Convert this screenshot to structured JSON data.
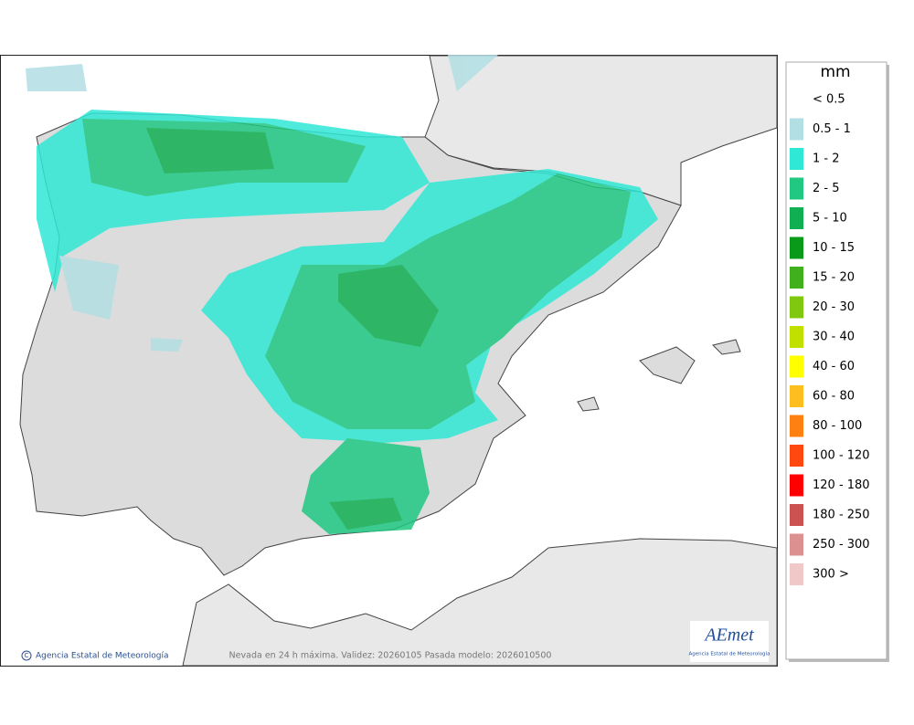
{
  "legend": {
    "title": "mm",
    "items": [
      {
        "label": "< 0.5"
      },
      {
        "label": "0.5 - 1",
        "color": "#b2dfe4"
      },
      {
        "label": "1 - 2",
        "color": "#30e8d6"
      },
      {
        "label": "2 - 5",
        "color": "#20c882"
      },
      {
        "label": "5 - 10",
        "color": "#10b052"
      },
      {
        "label": "10 - 15",
        "color": "#0a9a1a"
      },
      {
        "label": "15 - 20",
        "color": "#40b01c"
      },
      {
        "label": "20 - 30",
        "color": "#80c810"
      },
      {
        "label": "30 - 40",
        "color": "#c2e000"
      },
      {
        "label": "40 - 60",
        "color": "#ffff00"
      },
      {
        "label": "60 - 80",
        "color": "#ffbe20"
      },
      {
        "label": "80 - 100",
        "color": "#ff8012"
      },
      {
        "label": "100 - 120",
        "color": "#ff4810"
      },
      {
        "label": "120 - 180",
        "color": "#ff0000"
      },
      {
        "label": "180 - 250",
        "color": "#cc5252"
      },
      {
        "label": "250 - 300",
        "color": "#dc9090"
      },
      {
        "label": "300 >",
        "color": "#f0c8c8"
      }
    ]
  },
  "map": {
    "credit": "Agencia Estatal de Meteorología",
    "caption": "Nevada en 24 h máxima. Validez: 20260105 Pasada modelo: 2026010500",
    "logo": {
      "name": "AEmet",
      "subtitle": "Agencia Estatal de Meteorología"
    }
  }
}
